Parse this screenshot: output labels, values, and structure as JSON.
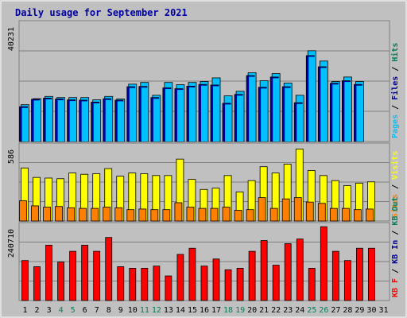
{
  "chart_data": {
    "type": "bar",
    "title": "Daily usage for September 2021",
    "categories": [
      "1",
      "2",
      "3",
      "4",
      "5",
      "6",
      "7",
      "8",
      "9",
      "10",
      "11",
      "12",
      "13",
      "14",
      "15",
      "16",
      "17",
      "18",
      "19",
      "20",
      "21",
      "22",
      "23",
      "24",
      "25",
      "26",
      "27",
      "28",
      "29",
      "30",
      "31"
    ],
    "weekend_days": [
      "4",
      "5",
      "11",
      "12",
      "18",
      "19",
      "25",
      "26"
    ],
    "panels": [
      {
        "id": "top",
        "max_label": "40231",
        "ymax": 40231,
        "legend": [
          "Pages",
          "Files",
          "Hits"
        ],
        "series": [
          {
            "name": "Pages",
            "values": [
              12200,
              14800,
              15200,
              14900,
              14600,
              14500,
              13800,
              15000,
              14500,
              19200,
              19300,
              15400,
              18800,
              18500,
              19400,
              20000,
              19800,
              13400,
              16500,
              23100,
              19000,
              22600,
              19200,
              13600,
              30100,
              26200,
              20400,
              21300,
              20000,
              0,
              0
            ]
          },
          {
            "name": "Files",
            "values": [
              12200,
              14800,
              15200,
              14900,
              14600,
              14500,
              13800,
              15000,
              14500,
              19200,
              19300,
              15400,
              18800,
              18500,
              19400,
              20000,
              19800,
              13400,
              16500,
              23100,
              19000,
              22600,
              19200,
              13600,
              30100,
              26200,
              20400,
              21300,
              20000,
              0,
              0
            ]
          },
          {
            "name": "Hits",
            "values": [
              12900,
              15000,
              15800,
              15400,
              15400,
              15400,
              14600,
              15800,
              14900,
              20100,
              20700,
              16200,
              20700,
              19900,
              20700,
              21000,
              22300,
              16000,
              17600,
              24100,
              21300,
              23800,
              20500,
              16200,
              31800,
              28200,
              21000,
              22600,
              21000,
              0,
              0
            ]
          }
        ]
      },
      {
        "id": "mid",
        "max_label": "586",
        "ymax": 586,
        "legend": [
          "Sites",
          "Visits"
        ],
        "series": [
          {
            "name": "Sites",
            "values": [
              160,
              120,
              110,
              115,
              105,
              100,
              100,
              110,
              105,
              90,
              95,
              90,
              90,
              145,
              110,
              100,
              100,
              110,
              85,
              90,
              185,
              100,
              175,
              185,
              150,
              140,
              100,
              100,
              90,
              95,
              0
            ]
          },
          {
            "name": "Visits",
            "values": [
              420,
              345,
              340,
              335,
              380,
              370,
              375,
              415,
              355,
              380,
              375,
              360,
              360,
              490,
              330,
              250,
              260,
              360,
              230,
              320,
              430,
              380,
              450,
              570,
              400,
              360,
              320,
              280,
              300,
              310,
              0
            ]
          }
        ]
      },
      {
        "id": "bot",
        "max_label": "240710",
        "ymax": 240710,
        "legend": [
          "KB F",
          "KB In",
          "KB Out"
        ],
        "series": [
          {
            "name": "KB F",
            "values": [
              130000,
              110000,
              180000,
              125000,
              160000,
              180000,
              160000,
              205000,
              110000,
              105000,
              105000,
              112000,
              80000,
              150000,
              170000,
              112000,
              135000,
              100000,
              105000,
              160000,
              195000,
              115000,
              185000,
              200000,
              105000,
              240000,
              160000,
              130000,
              170000,
              170000,
              0
            ]
          }
        ]
      }
    ]
  },
  "colors": {
    "background": "#c0c0c0",
    "frame": "#ffffff",
    "pages": "#00c0ff",
    "files": "#0000a0",
    "hits": "#00c0ff",
    "sites": "#ff8000",
    "visits": "#ffff00",
    "kb": "#ff0000",
    "title": "#0000a0",
    "weekend": "#00805c",
    "weekday": "#000000"
  }
}
